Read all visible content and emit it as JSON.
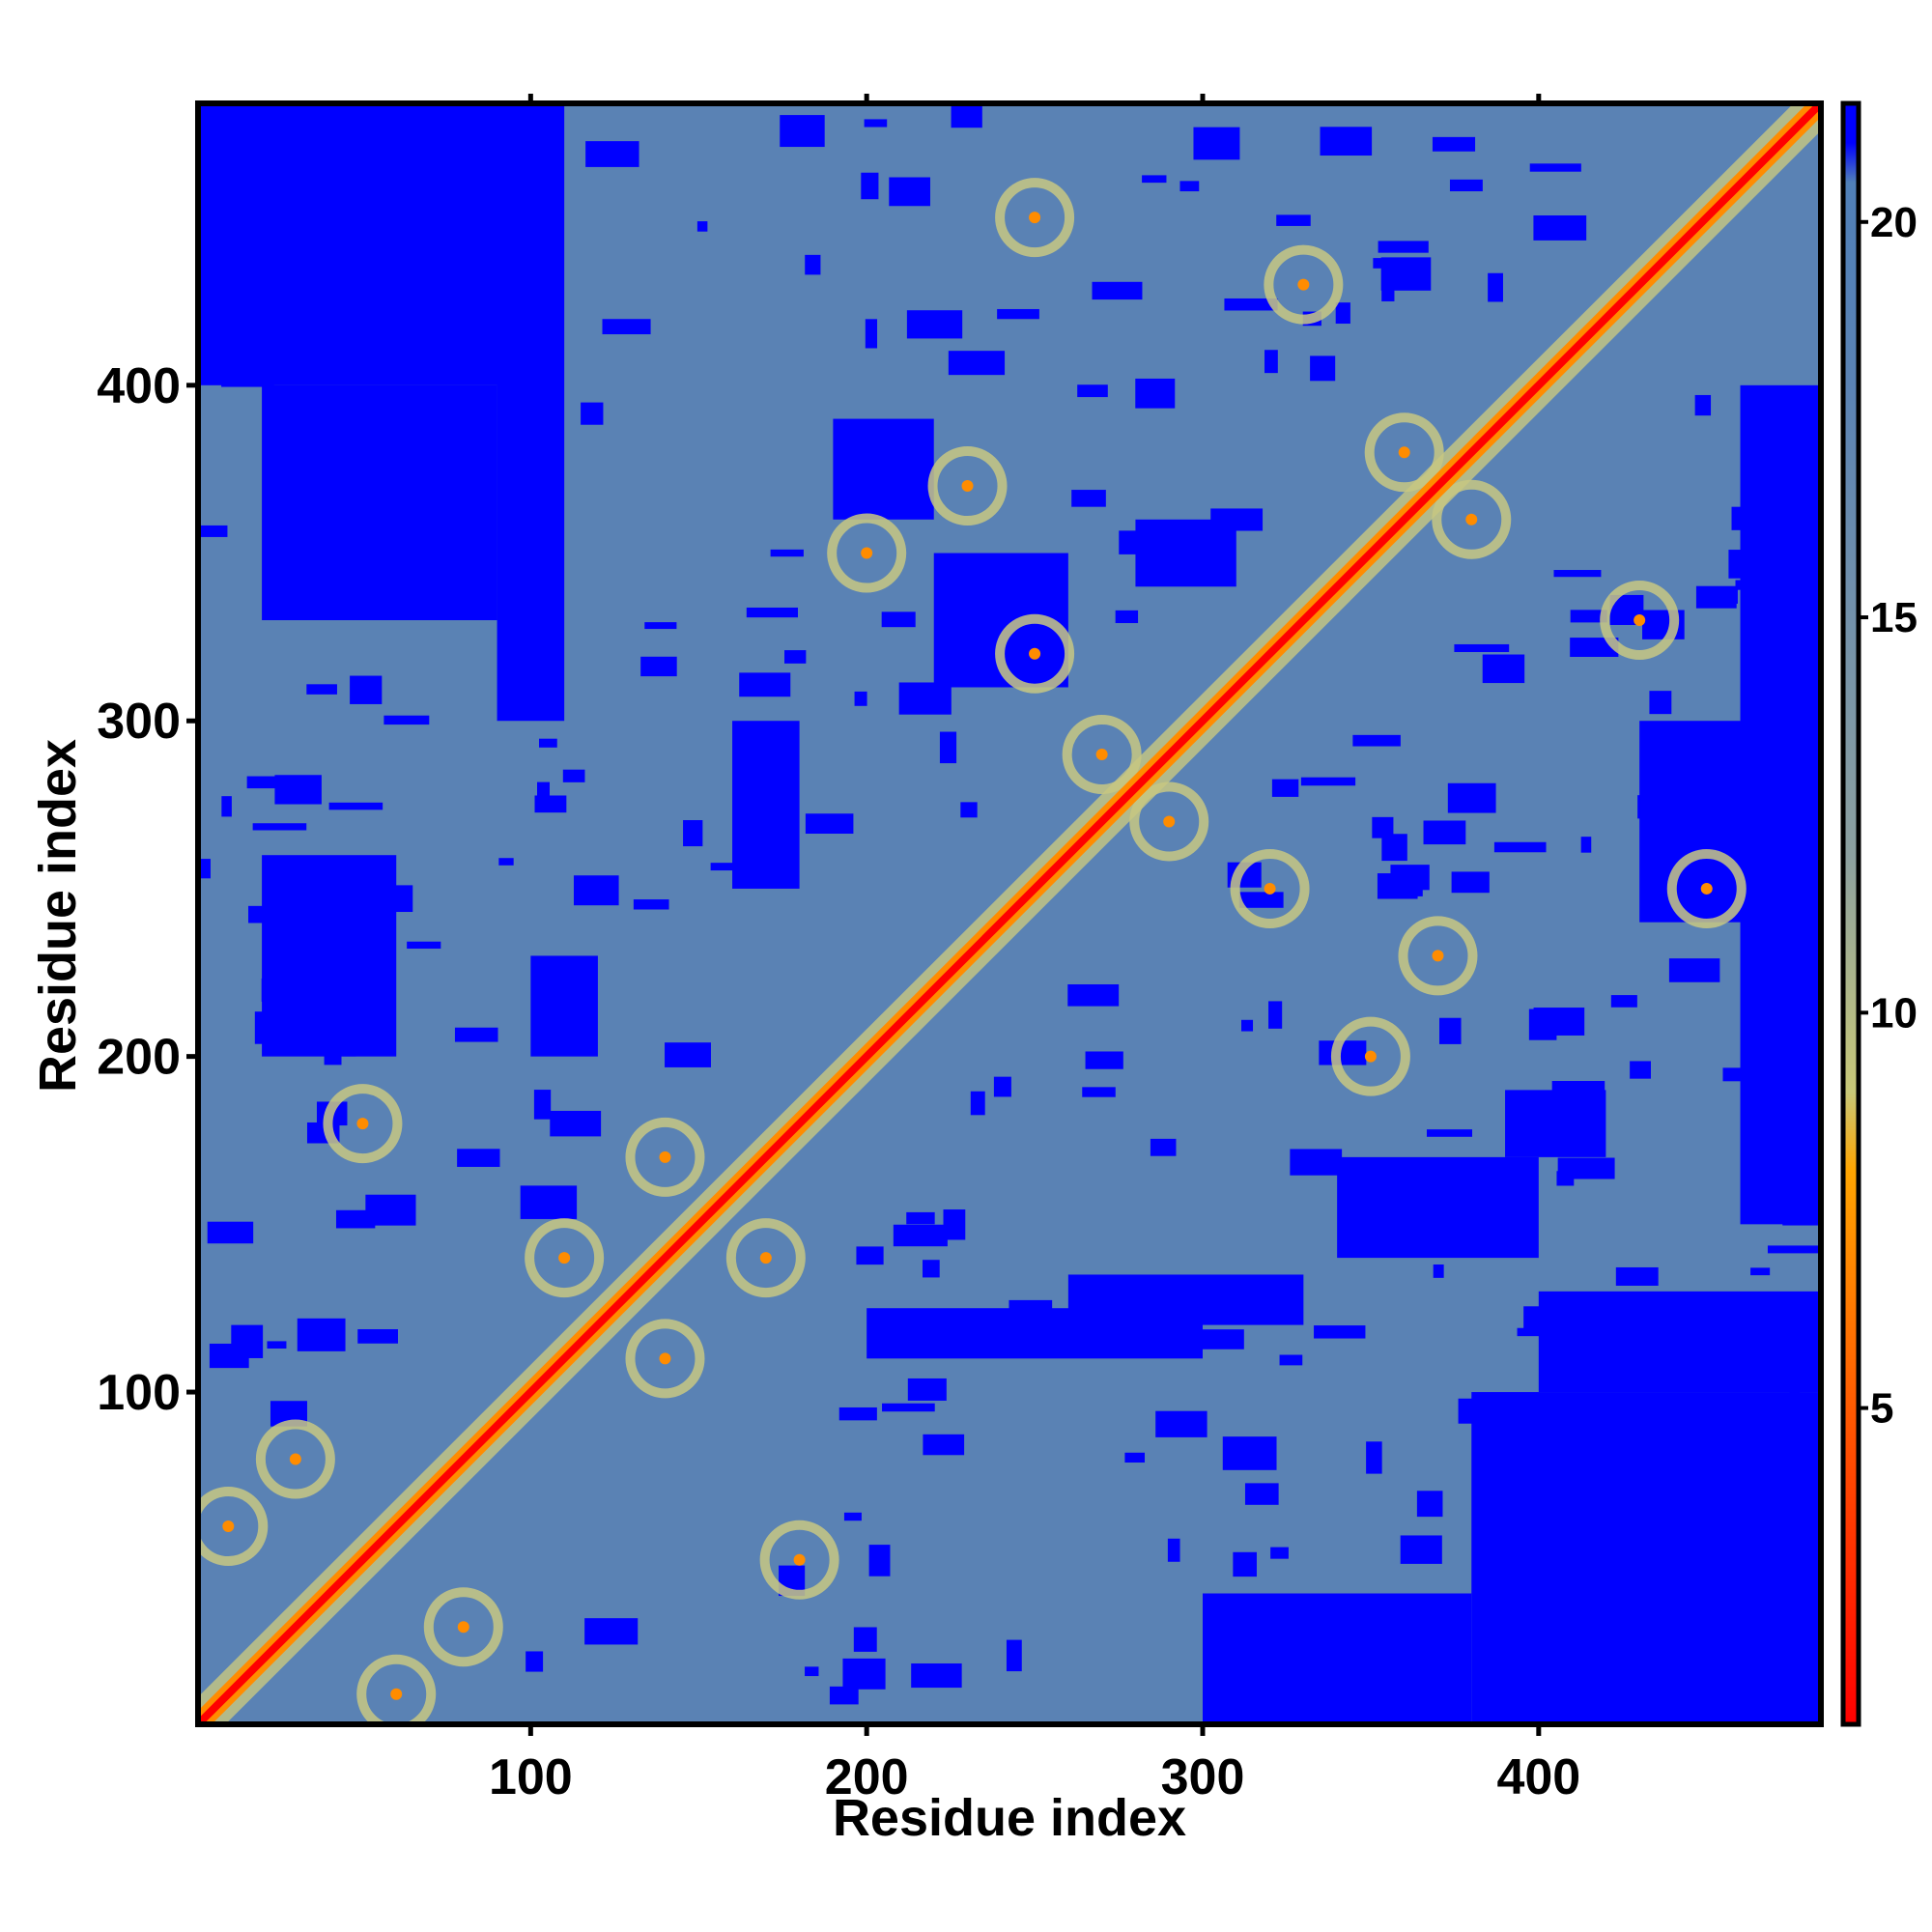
{
  "chart_data": {
    "type": "heatmap",
    "title": "",
    "xlabel": "Residue index",
    "ylabel": "Residue index",
    "xlim": [
      1,
      484
    ],
    "ylim": [
      1,
      484
    ],
    "x_ticks": [
      100,
      200,
      300,
      400
    ],
    "y_ticks": [
      100,
      200,
      300,
      400
    ],
    "x_tick_labels": [
      "100",
      "200",
      "300",
      "400"
    ],
    "y_tick_labels": [
      "100",
      "200",
      "300",
      "400"
    ],
    "colorbar": {
      "ticks": [
        5,
        10,
        15,
        20
      ],
      "tick_labels": [
        "5",
        "10",
        "15",
        "20"
      ],
      "range": [
        1,
        21.5
      ],
      "stops": [
        {
          "value": 1,
          "color": "#ff0000"
        },
        {
          "value": 5,
          "color": "#ff5a00"
        },
        {
          "value": 8,
          "color": "#ffa500"
        },
        {
          "value": 9,
          "color": "#c8c878"
        },
        {
          "value": 12,
          "color": "#8ca0a0"
        },
        {
          "value": 18,
          "color": "#5a82b4"
        },
        {
          "value": 20.5,
          "color": "#5080b8"
        },
        {
          "value": 21,
          "color": "#0000ff"
        },
        {
          "value": 21.5,
          "color": "#0000ff"
        }
      ]
    },
    "colors": {
      "far": "#0000ff",
      "mid": "#5a82b4",
      "contact_ring": "#c8c882",
      "close": "#ff8c00",
      "diagonal": "#ff0000"
    },
    "contact_regions": [
      {
        "x": [
          1,
          120
        ],
        "y": [
          1,
          120
        ],
        "level": "mid"
      },
      {
        "x": [
          100,
          190
        ],
        "y": [
          100,
          190
        ],
        "level": "mid"
      },
      {
        "x": [
          170,
          484
        ],
        "y": [
          170,
          484
        ],
        "level": "mid"
      },
      {
        "x": [
          1,
          484
        ],
        "y": [
          1,
          484
        ],
        "level": "mid"
      }
    ],
    "far_patches_upper_left": [
      [
        1,
        100,
        400,
        484
      ],
      [
        20,
        90,
        330,
        400
      ],
      [
        90,
        110,
        300,
        484
      ],
      [
        20,
        60,
        200,
        260
      ],
      [
        160,
        180,
        250,
        300
      ],
      [
        100,
        120,
        200,
        230
      ],
      [
        190,
        220,
        360,
        390
      ],
      [
        220,
        260,
        310,
        350
      ],
      [
        280,
        310,
        340,
        360
      ]
    ],
    "far_patches_lower_right": [
      [
        380,
        484,
        1,
        100
      ],
      [
        400,
        484,
        100,
        130
      ],
      [
        300,
        380,
        1,
        40
      ],
      [
        200,
        300,
        110,
        125
      ],
      [
        260,
        330,
        120,
        135
      ],
      [
        340,
        400,
        140,
        170
      ],
      [
        390,
        420,
        170,
        190
      ],
      [
        430,
        484,
        240,
        300
      ],
      [
        460,
        484,
        150,
        400
      ]
    ],
    "off_diagonal_contacts": [
      {
        "x": 60,
        "y": 10
      },
      {
        "x": 80,
        "y": 30
      },
      {
        "x": 10,
        "y": 60
      },
      {
        "x": 30,
        "y": 80
      },
      {
        "x": 140,
        "y": 110
      },
      {
        "x": 110,
        "y": 140
      },
      {
        "x": 170,
        "y": 140
      },
      {
        "x": 140,
        "y": 170
      },
      {
        "x": 270,
        "y": 290
      },
      {
        "x": 290,
        "y": 270
      },
      {
        "x": 360,
        "y": 380
      },
      {
        "x": 380,
        "y": 360
      },
      {
        "x": 200,
        "y": 350
      },
      {
        "x": 350,
        "y": 200
      },
      {
        "x": 330,
        "y": 430
      },
      {
        "x": 430,
        "y": 330
      },
      {
        "x": 230,
        "y": 370
      },
      {
        "x": 370,
        "y": 230
      },
      {
        "x": 250,
        "y": 450
      },
      {
        "x": 450,
        "y": 250
      },
      {
        "x": 320,
        "y": 250
      },
      {
        "x": 250,
        "y": 320
      },
      {
        "x": 180,
        "y": 50
      },
      {
        "x": 50,
        "y": 180
      }
    ],
    "grid": false,
    "legend": "colorbar-right"
  }
}
